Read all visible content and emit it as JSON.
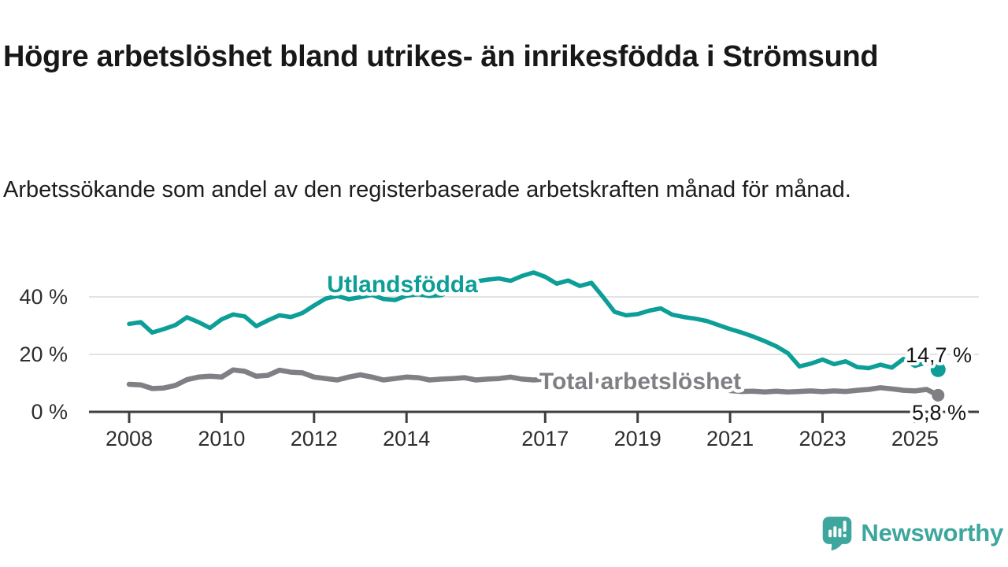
{
  "chart_data": {
    "type": "line",
    "title": "Högre arbetslöshet bland utrikes- än inrikesfödda i Strömsund",
    "subtitle": "Arbetssökande som andel av den registerbaserade arbetskraften månad för månad.",
    "x_axis": {
      "tick_years": [
        2008,
        2010,
        2012,
        2014,
        2017,
        2019,
        2021,
        2023,
        2025
      ],
      "range": [
        2008.0,
        2025.58
      ]
    },
    "y_axis": {
      "unit": "%",
      "ticks": [
        {
          "value": 0,
          "label": "0 %"
        },
        {
          "value": 20,
          "label": "20 %"
        },
        {
          "value": 40,
          "label": "40 %"
        }
      ],
      "range": [
        0,
        52
      ],
      "grid": "horizontal"
    },
    "legend": "inline-labels",
    "series": [
      {
        "name": "Utlandsfödda",
        "slug": "utlandsfodda",
        "color": "#0d9e97",
        "end_value": 14.7,
        "end_label": "14,7 %",
        "points": [
          [
            2008.0,
            30.6
          ],
          [
            2008.25,
            31.2
          ],
          [
            2008.5,
            27.6
          ],
          [
            2008.75,
            28.8
          ],
          [
            2009.0,
            30.2
          ],
          [
            2009.25,
            32.9
          ],
          [
            2009.5,
            31.2
          ],
          [
            2009.75,
            29.2
          ],
          [
            2010.0,
            32.2
          ],
          [
            2010.25,
            33.9
          ],
          [
            2010.5,
            33.2
          ],
          [
            2010.75,
            29.8
          ],
          [
            2011.0,
            31.8
          ],
          [
            2011.25,
            33.6
          ],
          [
            2011.5,
            33.0
          ],
          [
            2011.75,
            34.4
          ],
          [
            2012.0,
            37.0
          ],
          [
            2012.25,
            39.4
          ],
          [
            2012.5,
            40.3
          ],
          [
            2012.75,
            39.2
          ],
          [
            2013.0,
            39.9
          ],
          [
            2013.25,
            40.7
          ],
          [
            2013.5,
            39.3
          ],
          [
            2013.75,
            38.9
          ],
          [
            2014.0,
            40.4
          ],
          [
            2014.25,
            40.9
          ],
          [
            2014.5,
            40.3
          ],
          [
            2014.75,
            40.6
          ],
          [
            2015.0,
            42.3
          ],
          [
            2015.25,
            44.0
          ],
          [
            2015.5,
            45.4
          ],
          [
            2015.75,
            46.0
          ],
          [
            2016.0,
            46.4
          ],
          [
            2016.25,
            45.6
          ],
          [
            2016.5,
            47.3
          ],
          [
            2016.75,
            48.5
          ],
          [
            2017.0,
            47.0
          ],
          [
            2017.25,
            44.6
          ],
          [
            2017.5,
            45.7
          ],
          [
            2017.75,
            43.8
          ],
          [
            2018.0,
            44.9
          ],
          [
            2018.25,
            40.0
          ],
          [
            2018.5,
            34.8
          ],
          [
            2018.75,
            33.6
          ],
          [
            2019.0,
            34.0
          ],
          [
            2019.25,
            35.2
          ],
          [
            2019.5,
            36.0
          ],
          [
            2019.75,
            33.8
          ],
          [
            2020.0,
            33.0
          ],
          [
            2020.25,
            32.4
          ],
          [
            2020.5,
            31.6
          ],
          [
            2020.75,
            30.2
          ],
          [
            2021.0,
            28.8
          ],
          [
            2021.25,
            27.6
          ],
          [
            2021.5,
            26.2
          ],
          [
            2021.75,
            24.6
          ],
          [
            2022.0,
            22.8
          ],
          [
            2022.25,
            20.4
          ],
          [
            2022.5,
            15.8
          ],
          [
            2022.75,
            16.8
          ],
          [
            2023.0,
            18.2
          ],
          [
            2023.25,
            16.6
          ],
          [
            2023.5,
            17.6
          ],
          [
            2023.75,
            15.6
          ],
          [
            2024.0,
            15.2
          ],
          [
            2024.25,
            16.4
          ],
          [
            2024.5,
            15.4
          ],
          [
            2024.75,
            18.4
          ],
          [
            2025.0,
            16.0
          ],
          [
            2025.25,
            17.2
          ],
          [
            2025.5,
            14.7
          ]
        ]
      },
      {
        "name": "Total arbetslöshet",
        "slug": "total-arbetsloshet",
        "color": "#7f7f84",
        "end_value": 5.8,
        "end_label": "5,8 %",
        "points": [
          [
            2008.0,
            9.6
          ],
          [
            2008.25,
            9.4
          ],
          [
            2008.5,
            8.1
          ],
          [
            2008.75,
            8.3
          ],
          [
            2009.0,
            9.2
          ],
          [
            2009.25,
            11.2
          ],
          [
            2009.5,
            12.1
          ],
          [
            2009.75,
            12.4
          ],
          [
            2010.0,
            12.1
          ],
          [
            2010.25,
            14.6
          ],
          [
            2010.5,
            14.1
          ],
          [
            2010.75,
            12.4
          ],
          [
            2011.0,
            12.7
          ],
          [
            2011.25,
            14.5
          ],
          [
            2011.5,
            13.8
          ],
          [
            2011.75,
            13.6
          ],
          [
            2012.0,
            12.1
          ],
          [
            2012.25,
            11.6
          ],
          [
            2012.5,
            11.1
          ],
          [
            2012.75,
            12.1
          ],
          [
            2013.0,
            12.9
          ],
          [
            2013.25,
            12.1
          ],
          [
            2013.5,
            11.1
          ],
          [
            2013.75,
            11.6
          ],
          [
            2014.0,
            12.1
          ],
          [
            2014.25,
            11.9
          ],
          [
            2014.5,
            11.1
          ],
          [
            2014.75,
            11.4
          ],
          [
            2015.0,
            11.6
          ],
          [
            2015.25,
            11.9
          ],
          [
            2015.5,
            11.1
          ],
          [
            2015.75,
            11.4
          ],
          [
            2016.0,
            11.6
          ],
          [
            2016.25,
            12.1
          ],
          [
            2016.5,
            11.4
          ],
          [
            2016.75,
            11.1
          ],
          [
            2017.0,
            11.4
          ],
          [
            2017.25,
            12.1
          ],
          [
            2017.5,
            12.4
          ],
          [
            2017.75,
            11.6
          ],
          [
            2018.0,
            11.0
          ],
          [
            2018.25,
            10.6
          ],
          [
            2018.5,
            10.1
          ],
          [
            2018.75,
            9.8
          ],
          [
            2019.0,
            9.4
          ],
          [
            2019.25,
            9.1
          ],
          [
            2019.5,
            8.9
          ],
          [
            2019.75,
            8.7
          ],
          [
            2020.0,
            8.9
          ],
          [
            2020.25,
            9.6
          ],
          [
            2020.5,
            9.2
          ],
          [
            2020.75,
            8.4
          ],
          [
            2021.0,
            7.4
          ],
          [
            2021.25,
            7.1
          ],
          [
            2021.5,
            7.2
          ],
          [
            2021.75,
            6.9
          ],
          [
            2022.0,
            7.2
          ],
          [
            2022.25,
            6.9
          ],
          [
            2022.5,
            7.1
          ],
          [
            2022.75,
            7.3
          ],
          [
            2023.0,
            7.0
          ],
          [
            2023.25,
            7.3
          ],
          [
            2023.5,
            7.1
          ],
          [
            2023.75,
            7.5
          ],
          [
            2024.0,
            7.8
          ],
          [
            2024.25,
            8.4
          ],
          [
            2024.5,
            8.0
          ],
          [
            2024.75,
            7.5
          ],
          [
            2025.0,
            7.3
          ],
          [
            2025.25,
            7.8
          ],
          [
            2025.5,
            5.8
          ]
        ]
      }
    ]
  },
  "colors": {
    "accent_teal": "#0d9e97",
    "series_gray": "#7f7f84",
    "gridline": "#dadada",
    "axis": "#3f3f3f",
    "text_dark": "#181818",
    "brand_teal": "#3da69e"
  },
  "branding": {
    "name": "Newsworthy",
    "icon": "newsworthy-speech-bubble-barchart-icon"
  }
}
